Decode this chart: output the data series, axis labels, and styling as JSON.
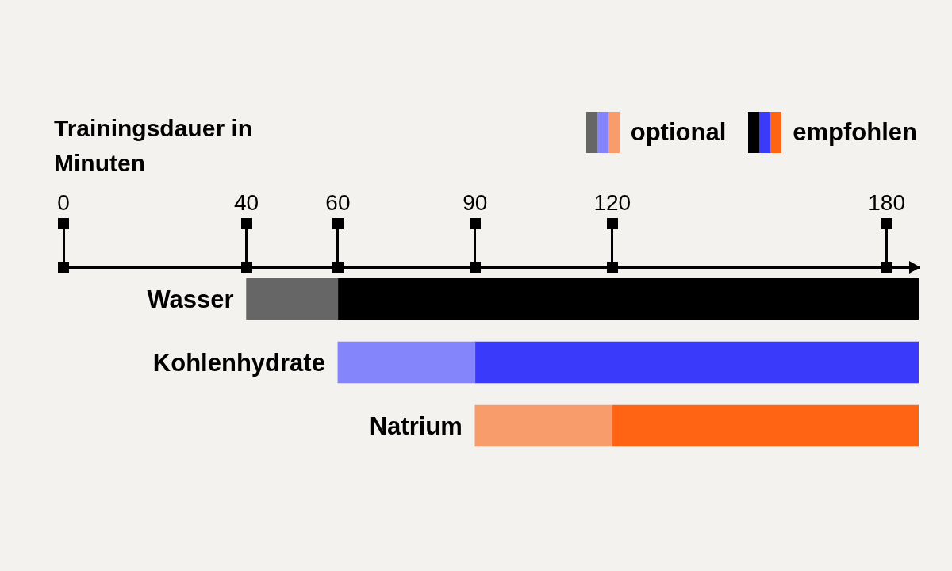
{
  "chart_data": {
    "type": "bar",
    "orientation": "horizontal",
    "xlabel": "Trainingsdauer in Minuten",
    "categories": [
      "Wasser",
      "Kohlenhydrate",
      "Natrium"
    ],
    "series": [
      {
        "name": "optional",
        "base": [
          40,
          60,
          90
        ],
        "values": [
          20,
          30,
          30
        ],
        "colors": [
          "#666666",
          "#8585fb",
          "#f89c6c"
        ]
      },
      {
        "name": "empfohlen",
        "base": [
          60,
          90,
          120
        ],
        "values": [
          127,
          97,
          67
        ],
        "colors": [
          "#000000",
          "#3a3afa",
          "#ff6414"
        ]
      }
    ],
    "xlim": [
      0,
      187
    ],
    "xticks": [
      0,
      40,
      60,
      90,
      120,
      180
    ],
    "legend": "top right"
  }
}
